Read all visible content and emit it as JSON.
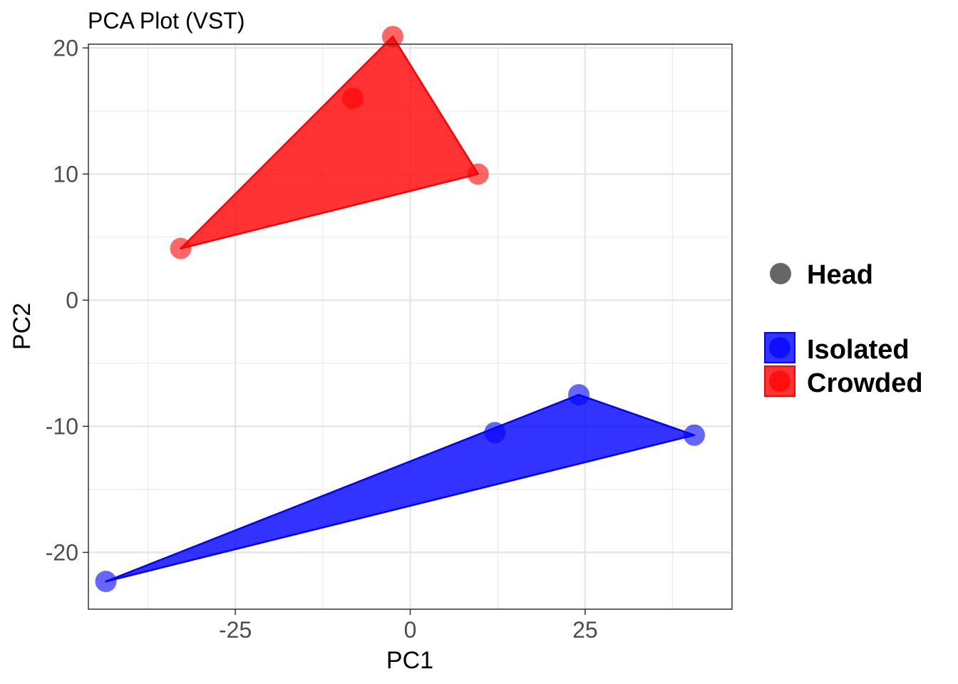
{
  "chart_data": {
    "type": "scatter",
    "title": "PCA Plot (VST)",
    "xlabel": "PC1",
    "ylabel": "PC2",
    "xlim": [
      -46,
      46
    ],
    "ylim": [
      -24.5,
      20.3
    ],
    "x_ticks": [
      -25,
      0,
      25
    ],
    "x_tick_labels": [
      "-25",
      "0",
      "25"
    ],
    "y_ticks": [
      -20,
      -10,
      0,
      10,
      20
    ],
    "y_tick_labels": [
      "-20",
      "-10",
      "0",
      "10",
      "20"
    ],
    "grid": true,
    "legend_position": "right",
    "shape_legend": {
      "label": "Head",
      "color": "#666666"
    },
    "series": [
      {
        "name": "Isolated",
        "color": "#0000ff",
        "points": [
          {
            "x": -43.5,
            "y": -22.3
          },
          {
            "x": 12.1,
            "y": -10.5
          },
          {
            "x": 24.1,
            "y": -7.5
          },
          {
            "x": 40.6,
            "y": -10.7
          }
        ],
        "hull": [
          {
            "x": -43.5,
            "y": -22.3
          },
          {
            "x": 24.1,
            "y": -7.5
          },
          {
            "x": 40.6,
            "y": -10.7
          }
        ]
      },
      {
        "name": "Crowded",
        "color": "#ff0000",
        "points": [
          {
            "x": -32.8,
            "y": 4.1
          },
          {
            "x": -8.2,
            "y": 16.0
          },
          {
            "x": -2.5,
            "y": 20.9
          },
          {
            "x": 9.7,
            "y": 10.0
          }
        ],
        "hull": [
          {
            "x": -32.8,
            "y": 4.1
          },
          {
            "x": -2.5,
            "y": 20.9
          },
          {
            "x": 9.7,
            "y": 10.0
          }
        ]
      }
    ]
  }
}
